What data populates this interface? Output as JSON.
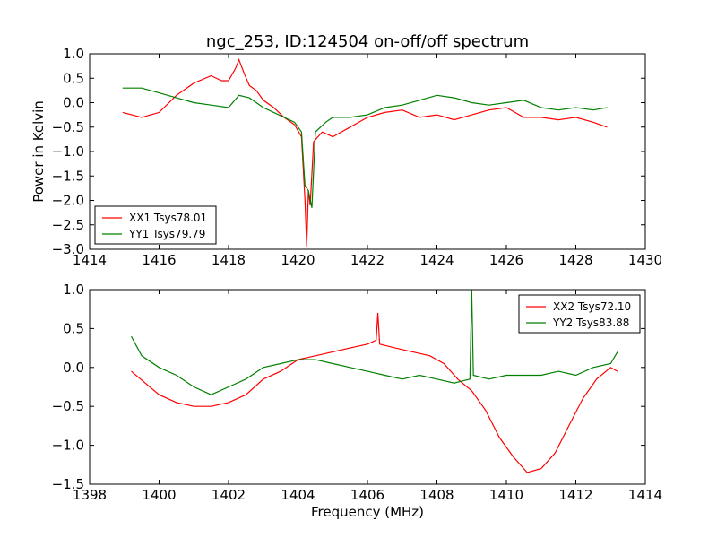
{
  "chart_data": [
    {
      "type": "line",
      "title": "ngc_253, ID:124504 on-off/off spectrum",
      "xlabel": "",
      "ylabel": "Power in Kelvin",
      "xlim": [
        1414,
        1430
      ],
      "ylim": [
        -3.0,
        1.0
      ],
      "xticks": [
        1414,
        1416,
        1418,
        1420,
        1422,
        1424,
        1426,
        1428,
        1430
      ],
      "yticks": [
        -3.0,
        -2.5,
        -2.0,
        -1.5,
        -1.0,
        -0.5,
        0.0,
        0.5,
        1.0
      ],
      "grid": false,
      "legend_position": "lower-left",
      "series": [
        {
          "name": "XX1 Tsys78.01",
          "color": "#ff0000",
          "points": [
            [
              1414.95,
              -0.2
            ],
            [
              1415.5,
              -0.3
            ],
            [
              1416.0,
              -0.2
            ],
            [
              1416.5,
              0.15
            ],
            [
              1417.0,
              0.4
            ],
            [
              1417.5,
              0.55
            ],
            [
              1417.8,
              0.45
            ],
            [
              1418.0,
              0.45
            ],
            [
              1418.2,
              0.7
            ],
            [
              1418.3,
              0.88
            ],
            [
              1418.45,
              0.6
            ],
            [
              1418.6,
              0.35
            ],
            [
              1418.8,
              0.25
            ],
            [
              1419.0,
              0.05
            ],
            [
              1419.3,
              -0.1
            ],
            [
              1419.6,
              -0.3
            ],
            [
              1419.9,
              -0.45
            ],
            [
              1420.1,
              -0.7
            ],
            [
              1420.2,
              -2.0
            ],
            [
              1420.25,
              -2.95
            ],
            [
              1420.3,
              -1.8
            ],
            [
              1420.35,
              -2.1
            ],
            [
              1420.45,
              -0.8
            ],
            [
              1420.7,
              -0.6
            ],
            [
              1421.0,
              -0.7
            ],
            [
              1421.5,
              -0.5
            ],
            [
              1422.0,
              -0.3
            ],
            [
              1422.5,
              -0.2
            ],
            [
              1423.0,
              -0.15
            ],
            [
              1423.5,
              -0.3
            ],
            [
              1424.0,
              -0.25
            ],
            [
              1424.5,
              -0.35
            ],
            [
              1425.0,
              -0.25
            ],
            [
              1425.5,
              -0.15
            ],
            [
              1426.0,
              -0.1
            ],
            [
              1426.5,
              -0.3
            ],
            [
              1427.0,
              -0.3
            ],
            [
              1427.5,
              -0.35
            ],
            [
              1428.0,
              -0.3
            ],
            [
              1428.5,
              -0.4
            ],
            [
              1428.9,
              -0.5
            ]
          ]
        },
        {
          "name": "YY1 Tsys79.79",
          "color": "#008000",
          "points": [
            [
              1414.95,
              0.3
            ],
            [
              1415.5,
              0.3
            ],
            [
              1416.0,
              0.2
            ],
            [
              1416.5,
              0.1
            ],
            [
              1417.0,
              0.0
            ],
            [
              1417.5,
              -0.05
            ],
            [
              1418.0,
              -0.1
            ],
            [
              1418.3,
              0.15
            ],
            [
              1418.6,
              0.1
            ],
            [
              1419.0,
              -0.1
            ],
            [
              1419.3,
              -0.2
            ],
            [
              1419.6,
              -0.3
            ],
            [
              1419.9,
              -0.4
            ],
            [
              1420.1,
              -0.6
            ],
            [
              1420.2,
              -1.7
            ],
            [
              1420.3,
              -1.8
            ],
            [
              1420.4,
              -2.15
            ],
            [
              1420.5,
              -0.6
            ],
            [
              1420.8,
              -0.4
            ],
            [
              1421.0,
              -0.3
            ],
            [
              1421.5,
              -0.3
            ],
            [
              1422.0,
              -0.25
            ],
            [
              1422.5,
              -0.1
            ],
            [
              1423.0,
              -0.05
            ],
            [
              1423.5,
              0.05
            ],
            [
              1424.0,
              0.15
            ],
            [
              1424.5,
              0.1
            ],
            [
              1425.0,
              0.0
            ],
            [
              1425.5,
              -0.05
            ],
            [
              1426.0,
              0.0
            ],
            [
              1426.5,
              0.05
            ],
            [
              1427.0,
              -0.1
            ],
            [
              1427.5,
              -0.15
            ],
            [
              1428.0,
              -0.1
            ],
            [
              1428.5,
              -0.15
            ],
            [
              1428.9,
              -0.1
            ]
          ]
        }
      ]
    },
    {
      "type": "line",
      "title": "",
      "xlabel": "Frequency (MHz)",
      "ylabel": "",
      "xlim": [
        1398,
        1414
      ],
      "ylim": [
        -1.5,
        1.0
      ],
      "xticks": [
        1398,
        1400,
        1402,
        1404,
        1406,
        1408,
        1410,
        1412,
        1414
      ],
      "yticks": [
        -1.5,
        -1.0,
        -0.5,
        0.0,
        0.5,
        1.0
      ],
      "grid": false,
      "legend_position": "upper-right",
      "series": [
        {
          "name": "XX2 Tsys72.10",
          "color": "#ff0000",
          "points": [
            [
              1399.2,
              -0.05
            ],
            [
              1399.6,
              -0.2
            ],
            [
              1400.0,
              -0.35
            ],
            [
              1400.5,
              -0.45
            ],
            [
              1401.0,
              -0.5
            ],
            [
              1401.5,
              -0.5
            ],
            [
              1402.0,
              -0.45
            ],
            [
              1402.5,
              -0.35
            ],
            [
              1403.0,
              -0.15
            ],
            [
              1403.5,
              -0.05
            ],
            [
              1404.0,
              0.1
            ],
            [
              1404.5,
              0.15
            ],
            [
              1405.0,
              0.2
            ],
            [
              1405.5,
              0.25
            ],
            [
              1406.0,
              0.3
            ],
            [
              1406.25,
              0.35
            ],
            [
              1406.3,
              0.7
            ],
            [
              1406.35,
              0.3
            ],
            [
              1406.8,
              0.25
            ],
            [
              1407.3,
              0.2
            ],
            [
              1407.8,
              0.15
            ],
            [
              1408.2,
              0.05
            ],
            [
              1408.6,
              -0.15
            ],
            [
              1409.0,
              -0.3
            ],
            [
              1409.4,
              -0.55
            ],
            [
              1409.8,
              -0.9
            ],
            [
              1410.2,
              -1.15
            ],
            [
              1410.6,
              -1.35
            ],
            [
              1411.0,
              -1.3
            ],
            [
              1411.4,
              -1.1
            ],
            [
              1411.8,
              -0.75
            ],
            [
              1412.2,
              -0.4
            ],
            [
              1412.6,
              -0.15
            ],
            [
              1413.0,
              0.0
            ],
            [
              1413.2,
              -0.05
            ]
          ]
        },
        {
          "name": "YY2 Tsys83.88",
          "color": "#008000",
          "points": [
            [
              1399.2,
              0.4
            ],
            [
              1399.5,
              0.15
            ],
            [
              1400.0,
              0.0
            ],
            [
              1400.5,
              -0.1
            ],
            [
              1401.0,
              -0.25
            ],
            [
              1401.5,
              -0.35
            ],
            [
              1402.0,
              -0.25
            ],
            [
              1402.5,
              -0.15
            ],
            [
              1403.0,
              0.0
            ],
            [
              1403.5,
              0.05
            ],
            [
              1404.0,
              0.1
            ],
            [
              1404.5,
              0.1
            ],
            [
              1405.0,
              0.05
            ],
            [
              1405.5,
              0.0
            ],
            [
              1406.0,
              -0.05
            ],
            [
              1406.5,
              -0.1
            ],
            [
              1407.0,
              -0.15
            ],
            [
              1407.5,
              -0.1
            ],
            [
              1408.0,
              -0.15
            ],
            [
              1408.5,
              -0.2
            ],
            [
              1408.95,
              -0.15
            ],
            [
              1409.0,
              1.0
            ],
            [
              1409.05,
              -0.1
            ],
            [
              1409.5,
              -0.15
            ],
            [
              1410.0,
              -0.1
            ],
            [
              1410.5,
              -0.1
            ],
            [
              1411.0,
              -0.1
            ],
            [
              1411.5,
              -0.05
            ],
            [
              1412.0,
              -0.1
            ],
            [
              1412.5,
              0.0
            ],
            [
              1413.0,
              0.05
            ],
            [
              1413.2,
              0.2
            ]
          ]
        }
      ]
    }
  ]
}
